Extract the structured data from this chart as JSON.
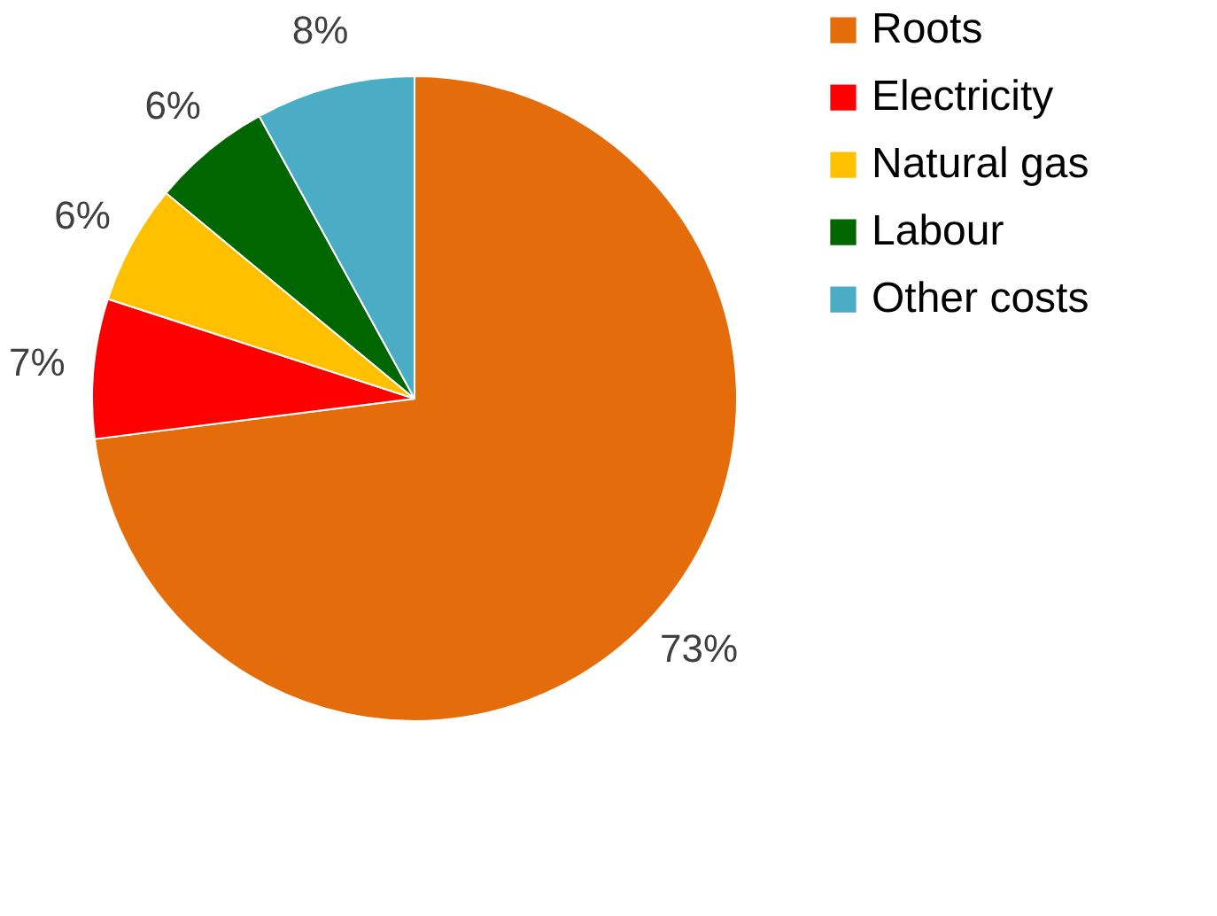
{
  "chart_data": {
    "type": "pie",
    "categories": [
      "Roots",
      "Electricity",
      "Natural gas",
      "Labour",
      "Other costs"
    ],
    "values": [
      73,
      7,
      6,
      6,
      8
    ],
    "value_labels": [
      "73%",
      "7%",
      "6%",
      "6%",
      "8%"
    ],
    "colors": [
      "#e46c0a",
      "#ff0000",
      "#ffc000",
      "#006600",
      "#4bacc6"
    ],
    "legend": "right"
  }
}
